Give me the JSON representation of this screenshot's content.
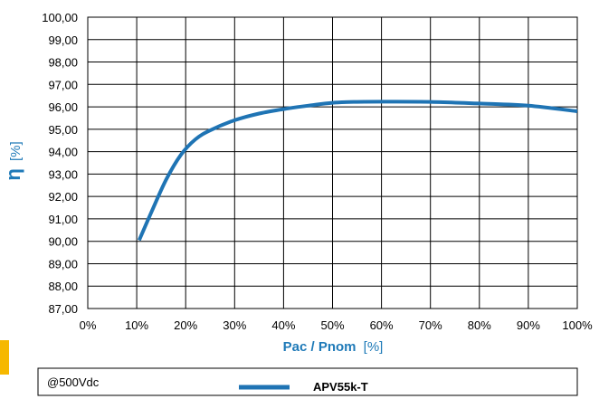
{
  "chart_data": {
    "type": "line",
    "xlabel": {
      "main": "Pac / Pnom",
      "unit": "[%]"
    },
    "ylabel": {
      "main": "η",
      "unit": "[%]"
    },
    "xlim": [
      0,
      100
    ],
    "ylim": [
      87,
      100
    ],
    "x_ticks": [
      "0%",
      "10%",
      "20%",
      "30%",
      "40%",
      "50%",
      "60%",
      "70%",
      "80%",
      "90%",
      "100%"
    ],
    "y_ticks": [
      "87,00",
      "88,00",
      "89,00",
      "90,00",
      "91,00",
      "92,00",
      "93,00",
      "94,00",
      "95,00",
      "96,00",
      "97,00",
      "98,00",
      "99,00",
      "100,00"
    ],
    "grid": true,
    "series": [
      {
        "name": "APV55k-T",
        "color": "#1f74b4",
        "x": [
          10.5,
          13,
          16,
          19,
          22,
          25,
          30,
          35,
          40,
          45,
          50,
          55,
          60,
          70,
          80,
          90,
          100
        ],
        "y": [
          90.05,
          91.3,
          92.75,
          93.85,
          94.55,
          94.95,
          95.4,
          95.7,
          95.9,
          96.05,
          96.18,
          96.22,
          96.23,
          96.22,
          96.15,
          96.05,
          95.8
        ]
      }
    ],
    "legend": {
      "position": "bottom",
      "condition": "@500Vdc"
    }
  }
}
